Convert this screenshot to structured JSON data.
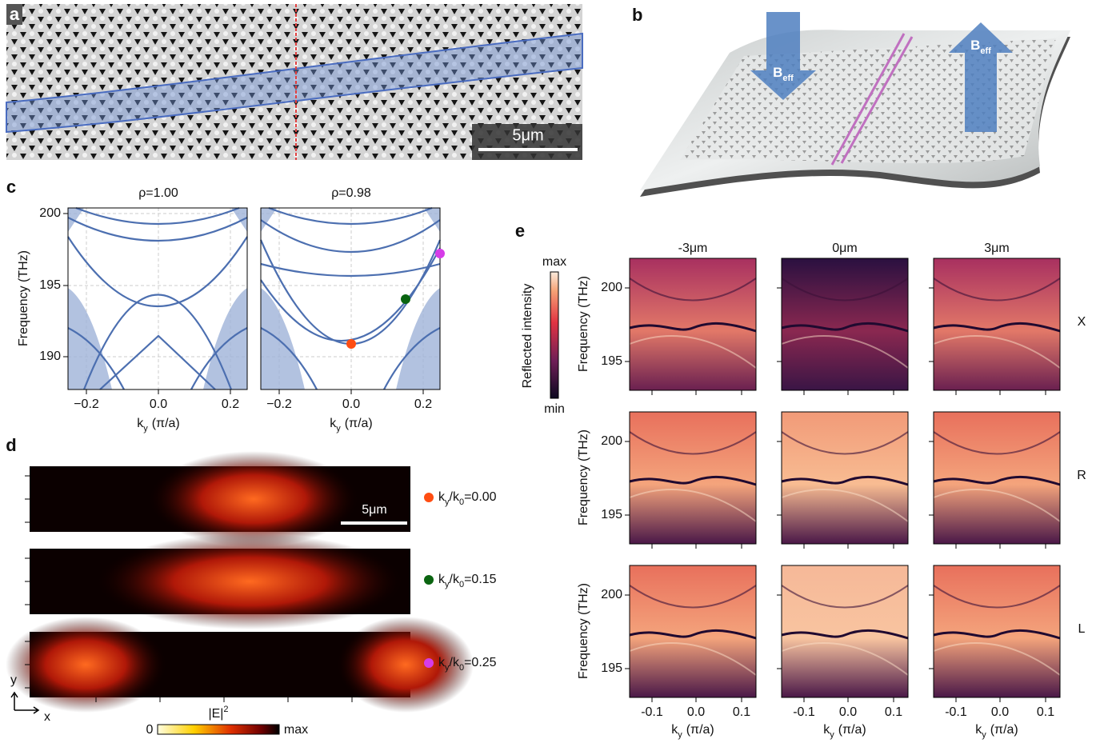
{
  "panels": {
    "a": {
      "label": "a",
      "scale_bar": "5μm"
    },
    "b": {
      "label": "b",
      "field_label": {
        "main": "B",
        "sub": "eff"
      }
    },
    "c": {
      "label": "c",
      "titles": [
        "ρ=1.00",
        "ρ=0.98"
      ],
      "y_label": "Frequency (THz)",
      "x_label": {
        "main": "k",
        "sub": "y",
        "unit": "(π/a)"
      },
      "yticks": [
        "200",
        "195",
        "190"
      ],
      "xticks": [
        "−0.2",
        "0.0",
        "0.2"
      ]
    },
    "d": {
      "label": "d",
      "scale_bar": "5μm",
      "legend": [
        {
          "a": "k",
          "a_sub": "y",
          "b": "/k",
          "b_sub": "0",
          "value": "=0.00"
        },
        {
          "a": "k",
          "a_sub": "y",
          "b": "/k",
          "b_sub": "0",
          "value": "=0.15"
        },
        {
          "a": "k",
          "a_sub": "y",
          "b": "/k",
          "b_sub": "0",
          "value": "=0.25"
        }
      ],
      "axes": {
        "y": "y",
        "x": "x"
      },
      "colorbar": {
        "main": "|E|",
        "sup": "2",
        "min": "0",
        "max": "max"
      }
    },
    "e": {
      "label": "e",
      "columns": [
        "-3μm",
        "0μm",
        "3μm"
      ],
      "rows": [
        "X",
        "R",
        "L"
      ],
      "y_label": "Frequency (THz)",
      "x_label": {
        "main": "k",
        "sub": "y",
        "unit": "(π/a)"
      },
      "yticks": [
        "200",
        "195"
      ],
      "xticks": [
        "-0.1",
        "0.0",
        "0.1"
      ],
      "colorbar": {
        "title": "Reflected intensity",
        "max": "max",
        "min": "min"
      }
    }
  }
}
